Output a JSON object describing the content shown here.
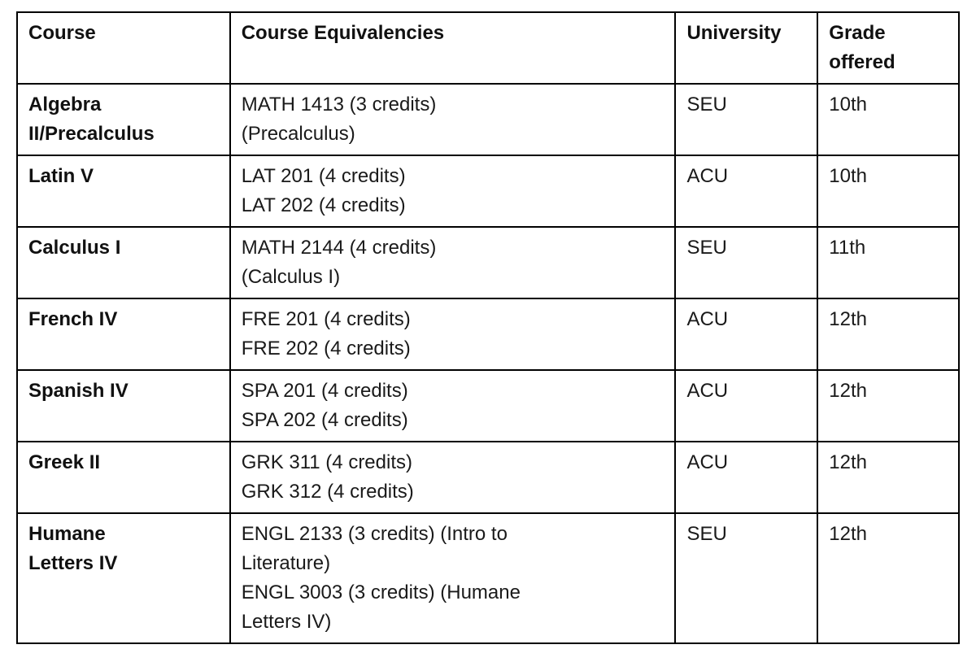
{
  "table": {
    "headers": {
      "course": "Course",
      "equivalencies": "Course Equivalencies",
      "university": "University",
      "grade": "Grade\noffered"
    },
    "rows": [
      {
        "course": "Algebra\nII/Precalculus",
        "equivalencies": "MATH 1413 (3 credits)\n(Precalculus)",
        "university": "SEU",
        "grade": "10th"
      },
      {
        "course": "Latin V",
        "equivalencies": "LAT 201 (4 credits)\nLAT 202 (4 credits)",
        "university": "ACU",
        "grade": "10th"
      },
      {
        "course": "Calculus I",
        "equivalencies": "MATH 2144 (4 credits)\n(Calculus I)",
        "university": "SEU",
        "grade": "11th"
      },
      {
        "course": "French IV",
        "equivalencies": "FRE 201 (4 credits)\nFRE 202 (4 credits)",
        "university": "ACU",
        "grade": "12th"
      },
      {
        "course": "Spanish IV",
        "equivalencies": "SPA 201 (4 credits)\nSPA 202 (4 credits)",
        "university": "ACU",
        "grade": "12th"
      },
      {
        "course": "Greek II",
        "equivalencies": "GRK 311 (4 credits)\nGRK 312 (4 credits)",
        "university": "ACU",
        "grade": "12th"
      },
      {
        "course": "Humane\nLetters IV",
        "equivalencies": "ENGL 2133 (3 credits) (Intro to\nLiterature)\nENGL 3003 (3 credits) (Humane\nLetters IV)",
        "university": "SEU",
        "grade": "12th"
      }
    ]
  }
}
